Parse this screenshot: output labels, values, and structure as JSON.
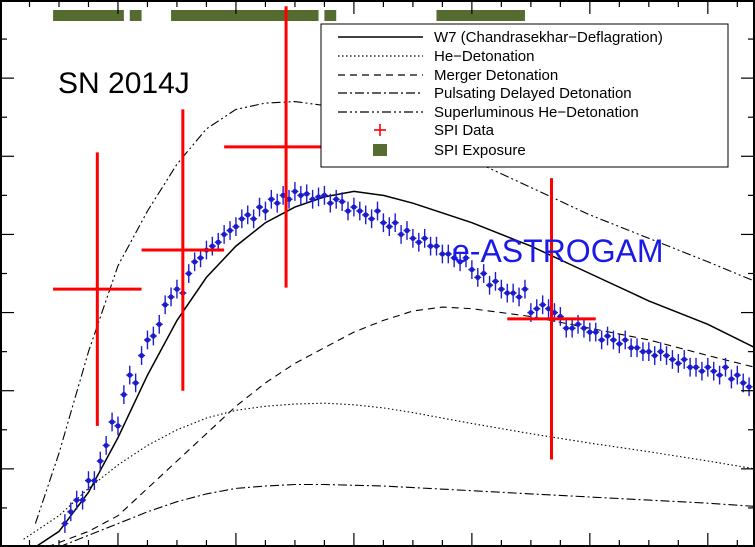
{
  "chart_data": {
    "type": "line",
    "title": "",
    "xlabel": "",
    "ylabel": "",
    "xlim": [
      0,
      128
    ],
    "ylim": [
      0,
      7
    ],
    "grid": false,
    "legend_position": "top-right",
    "annotations": {
      "object_label": "SN 2014J",
      "instrument_label": "e-ASTROGAM"
    },
    "legend": [
      {
        "key": "w7",
        "label": "W7 (Chandrasekhar−Deflagration)",
        "style": "solid"
      },
      {
        "key": "hedet",
        "label": "He−Detonation",
        "style": "dotted"
      },
      {
        "key": "merger",
        "label": "Merger Detonation",
        "style": "dashed"
      },
      {
        "key": "pdd",
        "label": "Pulsating Delayed Detonation",
        "style": "dashdot"
      },
      {
        "key": "slhe",
        "label": "Superluminous He−Detonation",
        "style": "dashdotdot"
      },
      {
        "key": "spi",
        "label": "SPI Data",
        "style": "cross"
      },
      {
        "key": "exposure",
        "label": "SPI Exposure",
        "style": "box"
      }
    ],
    "colors": {
      "spi_data": "#ff0000",
      "exposure": "#556b2f",
      "e_astrogam": "#1c1ccc",
      "e_astrogam_label": "#1a1ae6"
    },
    "series": [
      {
        "key": "w7",
        "style": "solid",
        "x": [
          6,
          10,
          15,
          20,
          25,
          30,
          35,
          40,
          45,
          50,
          55,
          60,
          65,
          70,
          80,
          90,
          100,
          110,
          120,
          128
        ],
        "y": [
          0.0,
          0.2,
          0.7,
          1.4,
          2.2,
          2.9,
          3.45,
          3.85,
          4.15,
          4.35,
          4.48,
          4.55,
          4.5,
          4.4,
          4.15,
          3.85,
          3.5,
          3.15,
          2.85,
          2.55
        ]
      },
      {
        "key": "hedet",
        "style": "dotted",
        "x": [
          4,
          10,
          15,
          20,
          25,
          30,
          35,
          40,
          45,
          50,
          55,
          60,
          65,
          70,
          80,
          90,
          100,
          110,
          120,
          128
        ],
        "y": [
          0.1,
          0.4,
          0.75,
          1.05,
          1.3,
          1.5,
          1.65,
          1.75,
          1.8,
          1.83,
          1.84,
          1.82,
          1.78,
          1.72,
          1.58,
          1.45,
          1.33,
          1.22,
          1.1,
          1.0
        ]
      },
      {
        "key": "merger",
        "style": "dashed",
        "x": [
          8,
          15,
          20,
          25,
          30,
          35,
          40,
          45,
          50,
          55,
          60,
          65,
          70,
          75,
          80,
          90,
          100,
          110,
          120,
          128
        ],
        "y": [
          0.0,
          0.2,
          0.4,
          0.75,
          1.1,
          1.45,
          1.8,
          2.1,
          2.35,
          2.55,
          2.75,
          2.9,
          3.02,
          3.07,
          3.05,
          2.95,
          2.8,
          2.65,
          2.45,
          2.3
        ]
      },
      {
        "key": "pdd",
        "style": "dashdot",
        "x": [
          10,
          15,
          20,
          25,
          30,
          35,
          40,
          45,
          50,
          55,
          60,
          65,
          70,
          80,
          90,
          100,
          110,
          120,
          128
        ],
        "y": [
          0.0,
          0.15,
          0.3,
          0.45,
          0.58,
          0.68,
          0.75,
          0.78,
          0.8,
          0.8,
          0.79,
          0.78,
          0.76,
          0.72,
          0.68,
          0.64,
          0.6,
          0.56,
          0.52
        ]
      },
      {
        "key": "slhe",
        "style": "dashdotdot",
        "x": [
          6,
          10,
          15,
          20,
          25,
          30,
          35,
          40,
          45,
          50,
          55,
          60,
          65,
          70,
          80,
          90,
          100,
          110,
          120,
          128
        ],
        "y": [
          0.3,
          1.2,
          2.5,
          3.6,
          4.3,
          4.9,
          5.35,
          5.6,
          5.68,
          5.7,
          5.65,
          5.55,
          5.4,
          5.25,
          4.95,
          4.6,
          4.25,
          3.95,
          3.65,
          3.4
        ]
      }
    ],
    "spi_data": [
      {
        "x": 16.5,
        "y": 3.3,
        "xerr": 7.5,
        "yerr": 1.75
      },
      {
        "x": 31.0,
        "y": 3.8,
        "xerr": 7.0,
        "yerr": 1.8
      },
      {
        "x": 48.5,
        "y": 5.12,
        "xerr": 10.5,
        "yerr": 1.8
      },
      {
        "x": 93.5,
        "y": 2.92,
        "xerr": 7.5,
        "yerr": 1.8
      }
    ],
    "spi_exposure": [
      [
        9,
        21
      ],
      [
        22,
        24
      ],
      [
        29,
        54
      ],
      [
        55,
        57
      ],
      [
        74,
        89
      ]
    ],
    "e_astrogam": {
      "x": [
        11,
        12,
        13,
        14,
        15,
        16,
        17,
        18,
        19,
        20,
        21,
        22,
        23,
        24,
        25,
        26,
        27,
        28,
        29,
        30,
        31,
        32,
        33,
        34,
        35,
        36,
        37,
        38,
        39,
        40,
        41,
        42,
        43,
        44,
        45,
        46,
        47,
        48,
        49,
        50,
        51,
        52,
        53,
        54,
        55,
        56,
        57,
        58,
        59,
        60,
        61,
        62,
        63,
        64,
        65,
        66,
        67,
        68,
        69,
        70,
        71,
        72,
        73,
        74,
        75,
        76,
        77,
        78,
        79,
        80,
        81,
        82,
        83,
        84,
        85,
        86,
        87,
        88,
        89,
        90,
        91,
        92,
        93,
        94,
        95,
        96,
        97,
        98,
        99,
        100,
        101,
        102,
        103,
        104,
        105,
        106,
        107,
        108,
        109,
        110,
        111,
        112,
        113,
        114,
        115,
        116,
        117,
        118,
        119,
        120,
        121,
        122,
        123,
        124,
        125,
        126,
        127
      ],
      "y": [
        0.3,
        0.45,
        0.6,
        0.6,
        0.85,
        0.85,
        1.1,
        1.3,
        1.6,
        1.55,
        1.95,
        2.2,
        2.1,
        2.45,
        2.65,
        2.7,
        2.85,
        3.1,
        3.2,
        3.3,
        3.25,
        3.5,
        3.65,
        3.7,
        3.8,
        3.85,
        3.9,
        4.0,
        4.05,
        4.1,
        4.2,
        4.25,
        4.2,
        4.35,
        4.3,
        4.45,
        4.4,
        4.5,
        4.45,
        4.55,
        4.5,
        4.52,
        4.45,
        4.48,
        4.5,
        4.4,
        4.45,
        4.42,
        4.3,
        4.35,
        4.3,
        4.25,
        4.2,
        4.3,
        4.15,
        4.1,
        4.15,
        4.0,
        4.05,
        3.95,
        3.9,
        3.95,
        3.85,
        3.85,
        3.75,
        3.75,
        3.7,
        3.65,
        3.7,
        3.55,
        3.45,
        3.5,
        3.35,
        3.4,
        3.3,
        3.25,
        3.25,
        3.2,
        3.3,
        3.0,
        3.05,
        3.1,
        3.05,
        3.0,
        2.95,
        2.8,
        2.8,
        2.85,
        2.8,
        2.75,
        2.75,
        2.65,
        2.7,
        2.65,
        2.6,
        2.65,
        2.55,
        2.55,
        2.5,
        2.5,
        2.45,
        2.5,
        2.45,
        2.4,
        2.35,
        2.4,
        2.3,
        2.3,
        2.25,
        2.3,
        2.25,
        2.2,
        2.3,
        2.15,
        2.2,
        2.1,
        2.05
      ],
      "yerr": 0.12
    }
  }
}
